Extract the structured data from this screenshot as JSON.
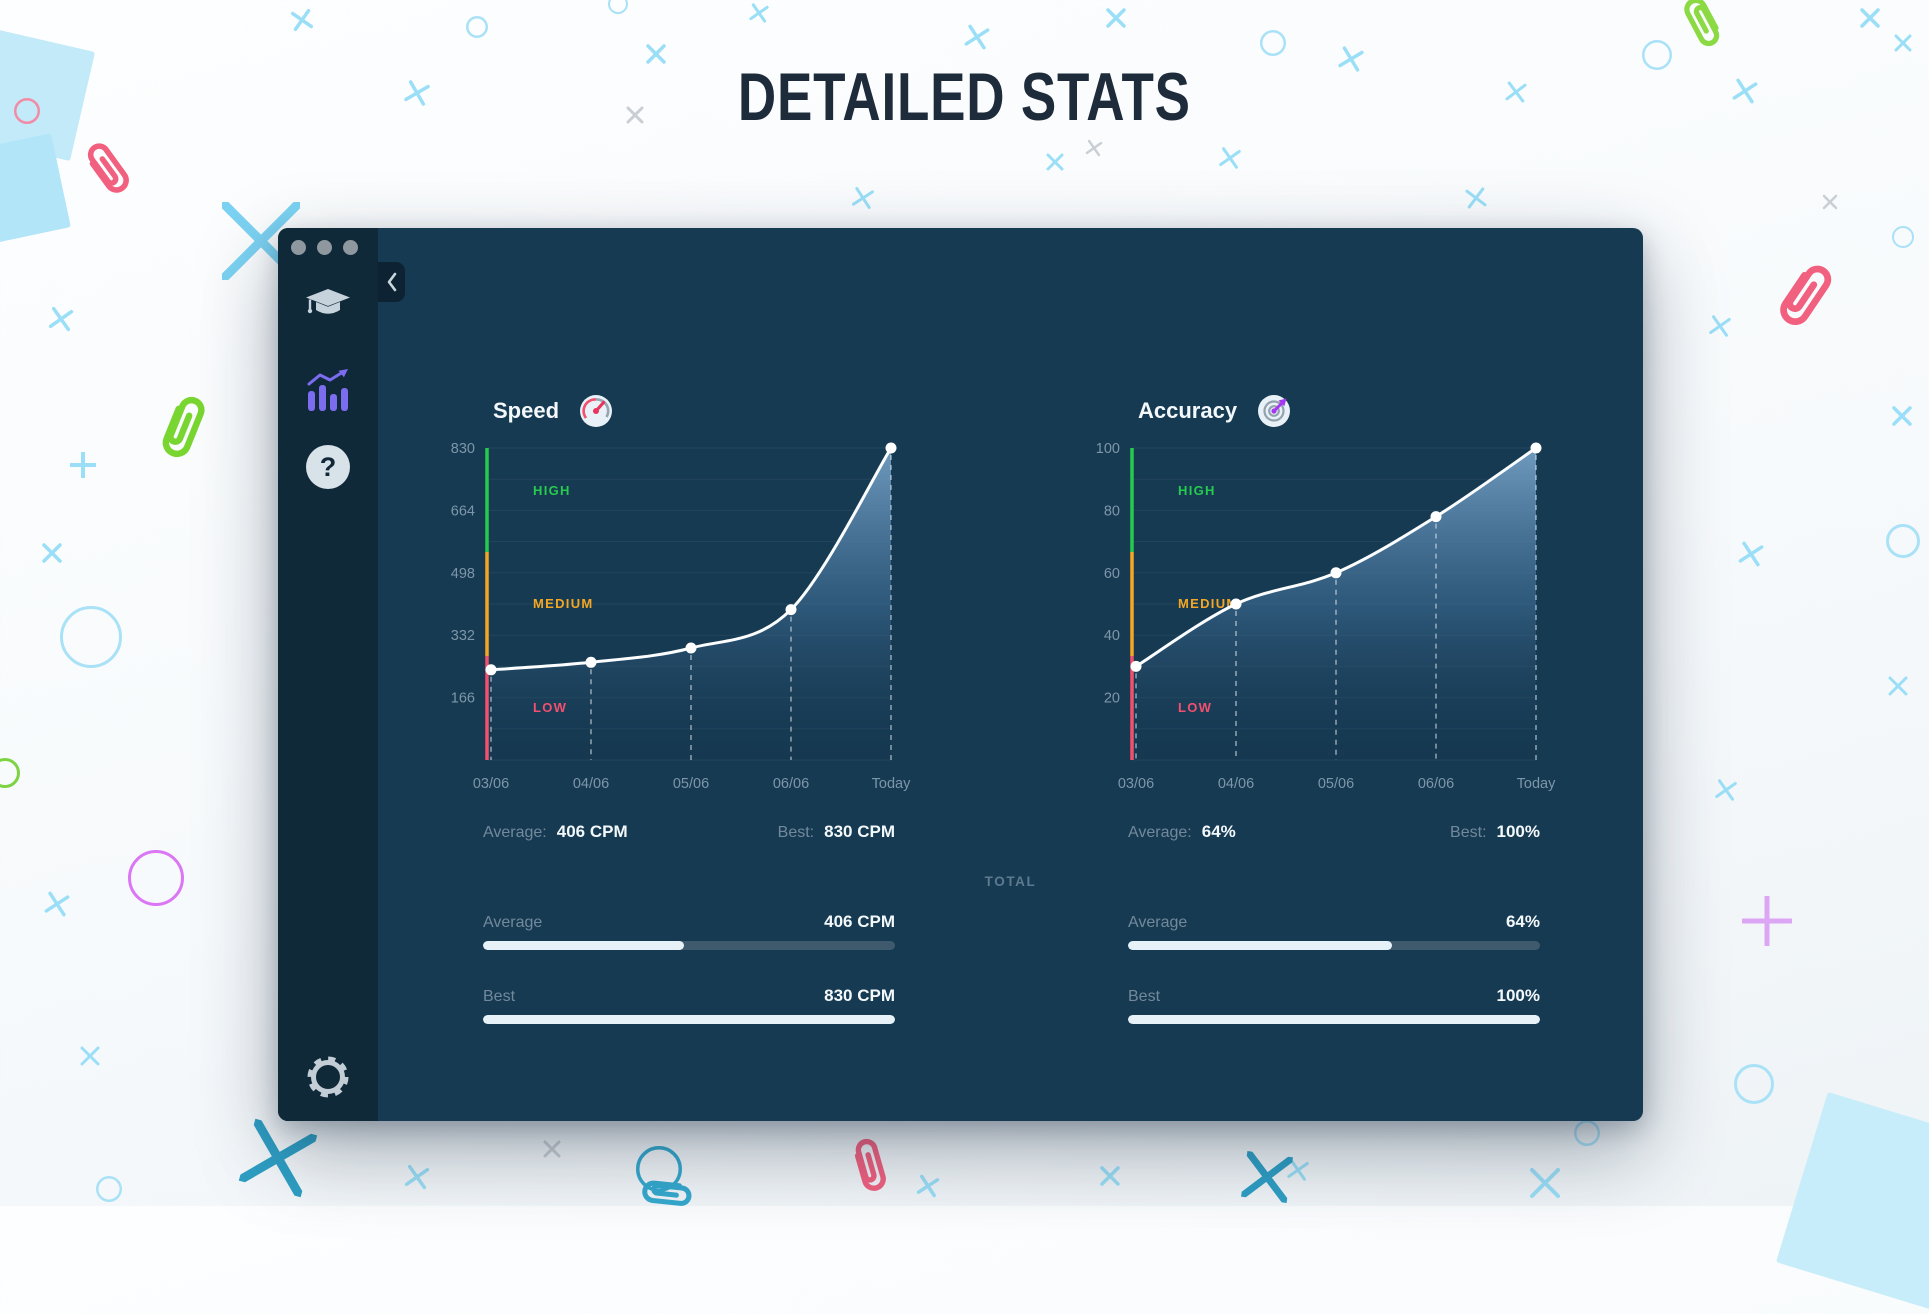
{
  "header": {
    "title": "DETAILED STATS"
  },
  "colors": {
    "window_bg": "#163A52",
    "sidebar_bg": "#0F2939",
    "accent_purple": "#7B6CF0",
    "high_green": "#26CB4E",
    "medium_orange": "#F5A623",
    "low_pink": "#F2506E",
    "curve": "#FBFDFF",
    "progress_fill": "#E7F2F8",
    "progress_track": "#3E5A6C"
  },
  "icons": {
    "help_glyph": "?"
  },
  "sidebar": {
    "items": [
      {
        "id": "learn",
        "icon": "graduation-cap-icon"
      },
      {
        "id": "stats",
        "icon": "bar-chart-icon",
        "active": true
      },
      {
        "id": "help",
        "icon": "question-mark-icon"
      }
    ],
    "bottom": {
      "id": "settings",
      "icon": "gear-icon"
    }
  },
  "chart_data": [
    {
      "type": "area",
      "title": "Speed",
      "icon": "speedometer-icon",
      "unit": "CPM",
      "x": [
        "03/06",
        "04/06",
        "05/06",
        "06/06",
        "Today"
      ],
      "values": [
        240,
        260,
        298,
        400,
        830
      ],
      "y_ticks": [
        830,
        664,
        498,
        332,
        166
      ],
      "ylim": [
        0,
        830
      ],
      "grid": true,
      "zones": [
        {
          "label": "HIGH",
          "color": "#26CB4E"
        },
        {
          "label": "MEDIUM",
          "color": "#F5A623"
        },
        {
          "label": "LOW",
          "color": "#F2506E"
        }
      ],
      "average_label": "Average:",
      "average_value": "406 CPM",
      "best_label": "Best:",
      "best_value": "830 CPM"
    },
    {
      "type": "area",
      "title": "Accuracy",
      "icon": "target-icon",
      "unit": "%",
      "x": [
        "03/06",
        "04/06",
        "05/06",
        "06/06",
        "Today"
      ],
      "values": [
        30,
        50,
        60,
        78,
        100
      ],
      "y_ticks": [
        100,
        80,
        60,
        40,
        20
      ],
      "ylim": [
        0,
        100
      ],
      "grid": true,
      "zones": [
        {
          "label": "HIGH",
          "color": "#26CB4E"
        },
        {
          "label": "MEDIUM",
          "color": "#F5A623"
        },
        {
          "label": "LOW",
          "color": "#F2506E"
        }
      ],
      "average_label": "Average:",
      "average_value": "64%",
      "best_label": "Best:",
      "best_value": "100%"
    }
  ],
  "total": {
    "label": "TOTAL",
    "speed": {
      "rows": [
        {
          "label": "Average",
          "value": "406 CPM",
          "percent": 48.9
        },
        {
          "label": "Best",
          "value": "830 CPM",
          "percent": 100
        }
      ]
    },
    "accuracy": {
      "rows": [
        {
          "label": "Average",
          "value": "64%",
          "percent": 64
        },
        {
          "label": "Best",
          "value": "100%",
          "percent": 100
        }
      ]
    }
  }
}
